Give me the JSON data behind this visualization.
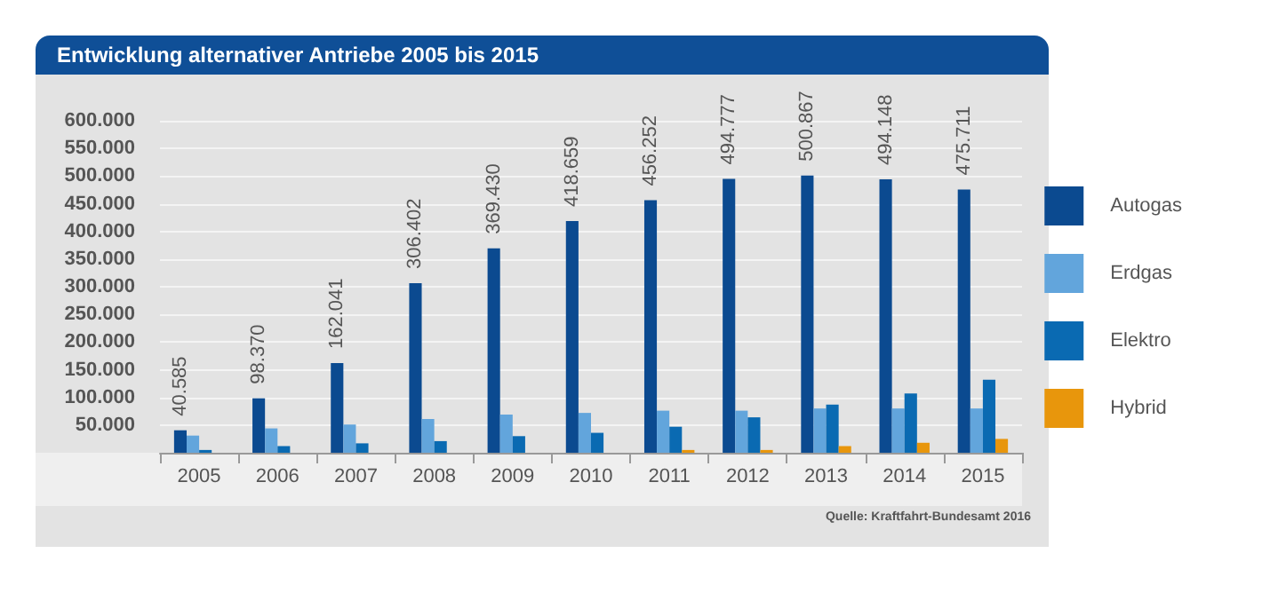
{
  "chart_data": {
    "type": "bar",
    "title": "Entwicklung alternativer Antriebe 2005 bis 2015",
    "categories": [
      "2005",
      "2006",
      "2007",
      "2008",
      "2009",
      "2010",
      "2011",
      "2012",
      "2013",
      "2014",
      "2015"
    ],
    "series": [
      {
        "name": "Autogas",
        "color": "#0b4a90",
        "values": [
          40585,
          98370,
          162041,
          306402,
          369430,
          418659,
          456252,
          494777,
          500867,
          494148,
          475711
        ],
        "value_labels": [
          "40.585",
          "98.370",
          "162.041",
          "306.402",
          "369.430",
          "418.659",
          "456.252",
          "494.777",
          "500.867",
          "494.148",
          "475.711"
        ]
      },
      {
        "name": "Erdgas",
        "color": "#62a5dc",
        "values": [
          31000,
          44000,
          51000,
          61000,
          69000,
          72000,
          76000,
          76000,
          80000,
          80000,
          80000
        ]
      },
      {
        "name": "Elektro",
        "color": "#0a6ab2",
        "values": [
          5000,
          12000,
          17000,
          21000,
          30000,
          36000,
          47000,
          64000,
          87000,
          107000,
          132000
        ]
      },
      {
        "name": "Hybrid",
        "color": "#e8960c",
        "values": [
          null,
          null,
          null,
          null,
          null,
          null,
          5000,
          5000,
          12000,
          18000,
          25000
        ]
      }
    ],
    "ylim": [
      0,
      600000
    ],
    "yticks": [
      {
        "value": 50000,
        "label": "50.000"
      },
      {
        "value": 100000,
        "label": "100.000"
      },
      {
        "value": 150000,
        "label": "150.000"
      },
      {
        "value": 200000,
        "label": "200.000"
      },
      {
        "value": 250000,
        "label": "250.000"
      },
      {
        "value": 300000,
        "label": "300.000"
      },
      {
        "value": 350000,
        "label": "350.000"
      },
      {
        "value": 400000,
        "label": "400.000"
      },
      {
        "value": 450000,
        "label": "450.000"
      },
      {
        "value": 500000,
        "label": "500.000"
      },
      {
        "value": 550000,
        "label": "550.000"
      },
      {
        "value": 600000,
        "label": "600.000"
      }
    ],
    "grid": "y",
    "legend": "right",
    "annotations": [
      "Quelle: Kraftfahrt-Bundesamt 2016"
    ]
  }
}
